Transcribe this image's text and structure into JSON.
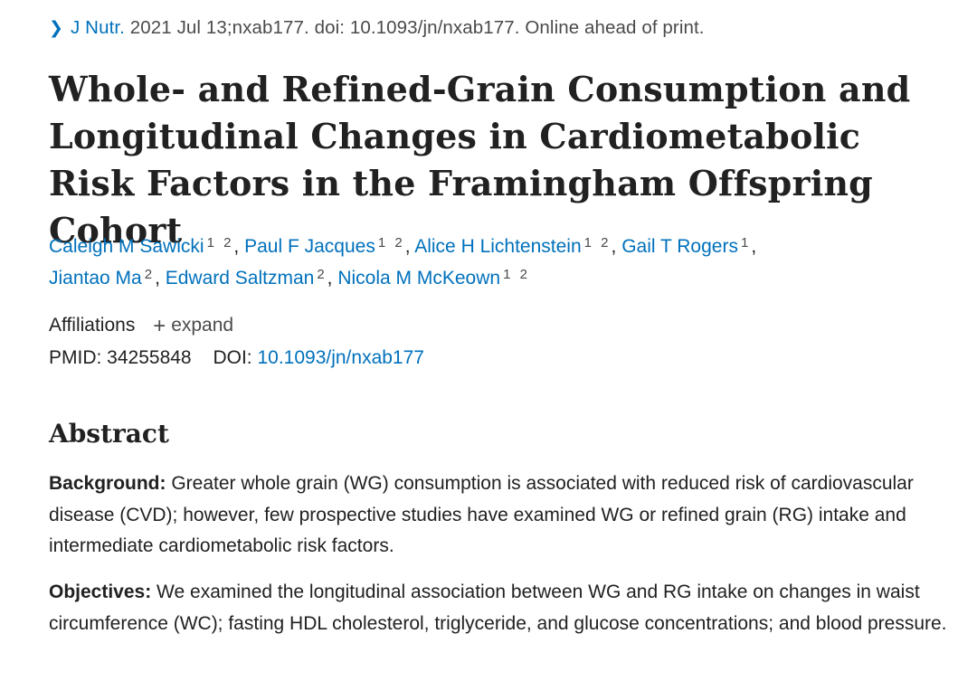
{
  "citation": {
    "journal": "J Nutr.",
    "rest": " 2021 Jul 13;nxab177. doi: 10.1093/jn/nxab177. Online ahead of print."
  },
  "title": "Whole- and Refined-Grain Consumption and Longitudinal Changes in Cardiometabolic Risk Factors in the Framingham Offspring Cohort",
  "authors": [
    {
      "name": "Caleigh M Sawicki",
      "aff": "1 2"
    },
    {
      "name": "Paul F Jacques",
      "aff": "1 2"
    },
    {
      "name": "Alice H Lichtenstein",
      "aff": "1 2"
    },
    {
      "name": "Gail T Rogers",
      "aff": "1"
    },
    {
      "name": "Jiantao Ma",
      "aff": "2"
    },
    {
      "name": "Edward Saltzman",
      "aff": "2"
    },
    {
      "name": "Nicola M McKeown",
      "aff": "1 2"
    }
  ],
  "affiliations": {
    "label": "Affiliations",
    "expand_label": "expand"
  },
  "ids": {
    "pmid_label": "PMID: 34255848",
    "doi_label": "DOI:",
    "doi_value": "10.1093/jn/nxab177"
  },
  "abstract": {
    "heading": "Abstract",
    "background_label": "Background:",
    "background_text": " Greater whole grain (WG) consumption is associated with reduced risk of cardiovascular disease (CVD); however, few prospective studies have examined WG or refined grain (RG) intake and intermediate cardiometabolic risk factors.",
    "objectives_label": "Objectives:",
    "objectives_text": " We examined the longitudinal association between WG and RG intake on changes in waist circumference (WC); fasting HDL cholesterol, triglyceride, and glucose concentrations; and blood pressure."
  },
  "colors": {
    "link": "#0071bc",
    "text": "#212121"
  }
}
